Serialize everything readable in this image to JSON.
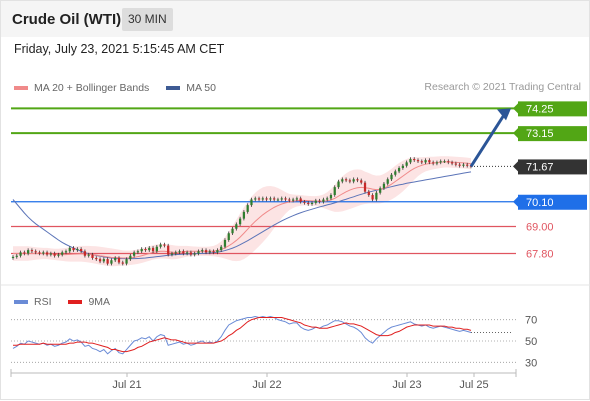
{
  "header": {
    "title": "Crude Oil (WTI)",
    "timeframe": "30 MIN",
    "datetime": "Friday, July 23, 2021 5:15:45 AM CET"
  },
  "legend": {
    "items": [
      {
        "label": "MA 20 + Bollinger Bands",
        "color": "#f08a8a"
      },
      {
        "label": "MA 50",
        "color": "#3e5b94"
      }
    ],
    "credit": "Research © 2021 Trading Central"
  },
  "rsi_legend": {
    "items": [
      {
        "label": "RSI",
        "color": "#6a8bd6"
      },
      {
        "label": "9MA",
        "color": "#e02020"
      }
    ]
  },
  "colors": {
    "resistance": "#52a615",
    "support": "#e05560",
    "pivot": "#1f6fe8",
    "last_price": "#333333",
    "candle_up": "#2f7d2f",
    "candle_down": "#c62828",
    "bollinger_fill": "#fce4e4",
    "ma20": "#f08a8a",
    "ma50": "#5b74b8",
    "arrow": "#2b5597"
  },
  "chart_data": [
    {
      "type": "candlestick",
      "title": "Crude Oil (WTI)",
      "timeframe": "30 MIN",
      "x_ticks": [
        "Jul 21",
        "Jul 22",
        "Jul 23",
        "Jul 25"
      ],
      "ylim": [
        66.8,
        74.8
      ],
      "levels": [
        {
          "value": 74.25,
          "label": "74.25",
          "kind": "resistance"
        },
        {
          "value": 73.15,
          "label": "73.15",
          "kind": "resistance"
        },
        {
          "value": 71.67,
          "label": "71.67",
          "kind": "last"
        },
        {
          "value": 70.1,
          "label": "70.10",
          "kind": "pivot"
        },
        {
          "value": 69.0,
          "label": "69.00",
          "kind": "support"
        },
        {
          "value": 67.8,
          "label": "67.80",
          "kind": "support"
        }
      ],
      "close": [
        67.65,
        67.7,
        67.85,
        67.8,
        67.95,
        67.9,
        67.85,
        67.8,
        67.85,
        67.75,
        67.8,
        67.7,
        67.75,
        67.85,
        67.9,
        68.05,
        67.95,
        68.0,
        67.9,
        67.7,
        67.75,
        67.6,
        67.55,
        67.45,
        67.55,
        67.35,
        67.5,
        67.6,
        67.4,
        67.35,
        67.55,
        67.7,
        67.85,
        67.9,
        68.0,
        67.95,
        68.05,
        67.9,
        68.1,
        68.2,
        68.15,
        67.75,
        67.8,
        67.85,
        67.9,
        67.8,
        67.85,
        67.75,
        67.8,
        67.9,
        67.95,
        67.85,
        67.9,
        67.85,
        67.95,
        68.1,
        68.4,
        68.7,
        68.9,
        69.1,
        69.35,
        69.65,
        69.95,
        70.2,
        70.25,
        70.2,
        70.25,
        70.2,
        70.25,
        70.2,
        70.2,
        70.25,
        70.2,
        70.15,
        70.2,
        70.25,
        70.1,
        70.05,
        70.0,
        70.05,
        70.15,
        70.1,
        70.2,
        70.25,
        70.4,
        70.75,
        71.0,
        71.1,
        71.05,
        71.0,
        71.1,
        71.05,
        70.95,
        70.55,
        70.4,
        70.2,
        70.5,
        70.7,
        70.9,
        71.1,
        71.3,
        71.45,
        71.6,
        71.7,
        71.85,
        72.0,
        71.95,
        71.9,
        71.85,
        71.95,
        71.85,
        71.8,
        71.85,
        71.9,
        71.9,
        71.85,
        71.8,
        71.75,
        71.7,
        71.75,
        71.7,
        71.67
      ],
      "ma20": [
        67.8,
        67.8,
        67.8,
        67.8,
        67.8,
        67.8,
        67.8,
        67.8,
        67.8,
        67.8,
        67.78,
        67.76,
        67.75,
        67.75,
        67.75,
        67.76,
        67.77,
        67.78,
        67.79,
        67.78,
        67.77,
        67.75,
        67.73,
        67.7,
        67.68,
        67.65,
        67.63,
        67.62,
        67.61,
        67.6,
        67.6,
        67.61,
        67.63,
        67.66,
        67.7,
        67.75,
        67.8,
        67.85,
        67.88,
        67.9,
        67.9,
        67.88,
        67.86,
        67.85,
        67.86,
        67.88,
        67.9,
        67.9,
        67.9,
        67.9,
        67.9,
        67.9,
        67.9,
        67.91,
        67.93,
        67.98,
        68.05,
        68.14,
        68.25,
        68.38,
        68.53,
        68.7,
        68.88,
        69.06,
        69.23,
        69.38,
        69.52,
        69.64,
        69.75,
        69.85,
        69.93,
        70.0,
        70.05,
        70.09,
        70.12,
        70.15,
        70.16,
        70.16,
        70.15,
        70.14,
        70.13,
        70.12,
        70.12,
        70.14,
        70.18,
        70.25,
        70.35,
        70.45,
        70.54,
        70.62,
        70.68,
        70.72,
        70.74,
        70.72,
        70.7,
        70.66,
        70.64,
        70.65,
        70.7,
        70.78,
        70.88,
        71.0,
        71.12,
        71.24,
        71.36,
        71.48,
        71.58,
        71.66,
        71.72,
        71.77,
        71.8,
        71.82,
        71.84,
        71.86,
        71.87,
        71.87,
        71.86,
        71.85,
        71.84,
        71.83,
        71.81,
        71.79
      ],
      "bb_width": [
        0.32,
        0.32,
        0.32,
        0.32,
        0.32,
        0.3,
        0.28,
        0.26,
        0.25,
        0.25,
        0.25,
        0.25,
        0.26,
        0.28,
        0.3,
        0.32,
        0.33,
        0.34,
        0.35,
        0.36,
        0.37,
        0.38,
        0.39,
        0.4,
        0.4,
        0.4,
        0.4,
        0.38,
        0.36,
        0.34,
        0.33,
        0.32,
        0.32,
        0.32,
        0.32,
        0.32,
        0.32,
        0.32,
        0.32,
        0.32,
        0.32,
        0.32,
        0.32,
        0.3,
        0.28,
        0.26,
        0.24,
        0.22,
        0.21,
        0.2,
        0.2,
        0.2,
        0.21,
        0.23,
        0.28,
        0.36,
        0.48,
        0.62,
        0.78,
        0.92,
        1.05,
        1.15,
        1.22,
        1.26,
        1.27,
        1.26,
        1.22,
        1.15,
        1.05,
        0.92,
        0.78,
        0.62,
        0.48,
        0.36,
        0.3,
        0.26,
        0.24,
        0.22,
        0.21,
        0.21,
        0.22,
        0.25,
        0.3,
        0.38,
        0.48,
        0.6,
        0.7,
        0.78,
        0.82,
        0.84,
        0.84,
        0.82,
        0.78,
        0.72,
        0.68,
        0.64,
        0.62,
        0.62,
        0.64,
        0.66,
        0.68,
        0.7,
        0.7,
        0.68,
        0.64,
        0.58,
        0.5,
        0.42,
        0.36,
        0.32,
        0.3,
        0.28,
        0.27,
        0.26,
        0.25,
        0.25,
        0.25,
        0.25,
        0.25,
        0.25,
        0.25,
        0.25
      ],
      "ma50": [
        70.2,
        70.0,
        69.8,
        69.6,
        69.42,
        69.26,
        69.12,
        69.0,
        68.88,
        68.76,
        68.64,
        68.52,
        68.4,
        68.29,
        68.2,
        68.12,
        68.04,
        67.97,
        67.9,
        67.84,
        67.79,
        67.75,
        67.71,
        67.68,
        67.65,
        67.62,
        67.6,
        67.59,
        67.58,
        67.57,
        67.57,
        67.57,
        67.57,
        67.58,
        67.59,
        67.6,
        67.62,
        67.64,
        67.66,
        67.68,
        67.7,
        67.72,
        67.74,
        67.75,
        67.76,
        67.77,
        67.78,
        67.78,
        67.79,
        67.8,
        67.8,
        67.81,
        67.82,
        67.84,
        67.86,
        67.89,
        67.93,
        67.98,
        68.04,
        68.11,
        68.19,
        68.28,
        68.37,
        68.47,
        68.57,
        68.67,
        68.77,
        68.87,
        68.97,
        69.07,
        69.16,
        69.25,
        69.33,
        69.41,
        69.48,
        69.55,
        69.61,
        69.67,
        69.72,
        69.77,
        69.82,
        69.87,
        69.91,
        69.96,
        70.0,
        70.05,
        70.1,
        70.16,
        70.21,
        70.27,
        70.32,
        70.38,
        70.43,
        70.48,
        70.53,
        70.57,
        70.61,
        70.65,
        70.69,
        70.73,
        70.77,
        70.81,
        70.85,
        70.88,
        70.92,
        70.95,
        70.98,
        71.01,
        71.04,
        71.07,
        71.1,
        71.13,
        71.16,
        71.19,
        71.22,
        71.25,
        71.28,
        71.31,
        71.34,
        71.37,
        71.4,
        71.43
      ],
      "projection": {
        "from": 71.67,
        "to": 74.25
      }
    },
    {
      "type": "line",
      "title": "RSI",
      "ylim": [
        20,
        80
      ],
      "y_ticks": [
        70,
        50,
        30
      ],
      "series": [
        {
          "name": "RSI",
          "values": [
            43,
            45,
            48,
            47,
            50,
            49,
            48,
            47,
            48,
            46,
            47,
            45,
            46,
            48,
            49,
            52,
            50,
            51,
            49,
            45,
            46,
            43,
            42,
            40,
            42,
            38,
            41,
            43,
            39,
            38,
            42,
            46,
            50,
            51,
            53,
            52,
            54,
            50,
            54,
            56,
            55,
            46,
            47,
            48,
            49,
            47,
            48,
            46,
            47,
            49,
            50,
            48,
            49,
            48,
            50,
            54,
            60,
            65,
            67,
            69,
            70,
            71,
            72,
            72,
            73,
            72,
            73,
            72,
            73,
            72,
            70,
            69,
            68,
            66,
            67,
            67,
            63,
            61,
            60,
            61,
            63,
            62,
            64,
            65,
            67,
            69,
            69,
            68,
            66,
            64,
            63,
            61,
            58,
            53,
            50,
            48,
            52,
            55,
            58,
            61,
            63,
            64,
            65,
            66,
            67,
            68,
            66,
            65,
            64,
            65,
            63,
            62,
            63,
            64,
            63,
            62,
            61,
            60,
            59,
            60,
            59,
            58
          ]
        },
        {
          "name": "9MA",
          "values": [
            46,
            46,
            47,
            47,
            47,
            47,
            47,
            47,
            48,
            47,
            47,
            47,
            47,
            47,
            47,
            48,
            48,
            49,
            49,
            49,
            48,
            48,
            47,
            46,
            45,
            44,
            42,
            42,
            41,
            40,
            40,
            41,
            42,
            44,
            45,
            47,
            49,
            50,
            51,
            52,
            53,
            52,
            51,
            51,
            50,
            49,
            48,
            48,
            48,
            48,
            48,
            48,
            48,
            48,
            49,
            50,
            52,
            55,
            57,
            60,
            62,
            65,
            68,
            70,
            71,
            72,
            72,
            72,
            72,
            72,
            72,
            72,
            71,
            70,
            69,
            68,
            67,
            65,
            64,
            63,
            63,
            62,
            62,
            62,
            63,
            64,
            65,
            66,
            67,
            66,
            66,
            65,
            64,
            62,
            60,
            58,
            56,
            55,
            55,
            55,
            56,
            58,
            59,
            61,
            63,
            64,
            65,
            65,
            65,
            65,
            65,
            64,
            64,
            64,
            64,
            63,
            63,
            62,
            62,
            61,
            61,
            60
          ]
        }
      ]
    }
  ]
}
